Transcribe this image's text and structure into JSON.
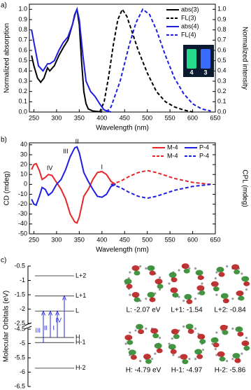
{
  "chart_data": [
    {
      "type": "line",
      "panel_label": "a)",
      "x_label": "Wavelength (nm)",
      "y_label": "Normalized absorption",
      "y2_label": "Normalized intensity",
      "xlim": [
        240,
        650
      ],
      "xticks": [
        250,
        300,
        350,
        400,
        450,
        500,
        550,
        600,
        650
      ],
      "ylim": [
        0,
        1.05
      ],
      "yticks": [
        {
          "value": 0,
          "label": "0.0"
        },
        0.1,
        0.2,
        0.3,
        0.4,
        0.5,
        0.6,
        0.7,
        0.8,
        0.9,
        {
          "value": 1,
          "label": "1.0"
        }
      ],
      "y2lim": [
        0,
        1.05
      ],
      "y2ticks": [
        {
          "value": 0,
          "label": "0.0"
        },
        0.1,
        0.2,
        0.3,
        0.4,
        0.5,
        0.6,
        0.7,
        0.8,
        0.9,
        {
          "value": 1,
          "label": "1.0"
        }
      ],
      "legend": "upper right",
      "inset_labels": [
        "4",
        "3"
      ],
      "series": [
        {
          "name": "abs(3)",
          "color": "#000000",
          "line_style": "solid",
          "x": [
            245,
            250,
            258,
            265,
            272,
            280,
            285,
            295,
            305,
            315,
            325,
            335,
            340,
            345,
            350,
            355,
            360,
            365,
            370,
            380,
            400
          ],
          "values": [
            0.55,
            0.45,
            0.33,
            0.29,
            0.33,
            0.43,
            0.4,
            0.45,
            0.55,
            0.63,
            0.7,
            0.85,
            0.95,
            1.0,
            0.85,
            0.5,
            0.2,
            0.08,
            0.03,
            0.01,
            0
          ]
        },
        {
          "name": "FL(3)",
          "color": "#000000",
          "line_style": "dashed",
          "axis": "y2",
          "x": [
            395,
            405,
            415,
            425,
            435,
            445,
            455,
            465,
            480,
            500,
            520,
            540,
            560,
            580,
            600
          ],
          "values": [
            0,
            0.1,
            0.35,
            0.65,
            0.9,
            1.0,
            0.93,
            0.8,
            0.6,
            0.38,
            0.2,
            0.1,
            0.05,
            0.02,
            0
          ]
        },
        {
          "name": "abs(4)",
          "color": "#1f1fe0",
          "line_style": "solid",
          "x": [
            245,
            250,
            260,
            270,
            280,
            285,
            295,
            305,
            315,
            325,
            335,
            342,
            345,
            350,
            358,
            365,
            375,
            385,
            395,
            405,
            420
          ],
          "values": [
            0.8,
            0.68,
            0.45,
            0.4,
            0.47,
            0.47,
            0.5,
            0.6,
            0.68,
            0.73,
            0.85,
            0.97,
            1.0,
            0.9,
            0.55,
            0.3,
            0.2,
            0.15,
            0.08,
            0.02,
            0
          ]
        },
        {
          "name": "FL(4)",
          "color": "#1f1fe0",
          "line_style": "dashed",
          "axis": "y2",
          "x": [
            410,
            420,
            440,
            460,
            475,
            490,
            505,
            520,
            540,
            560,
            580,
            600,
            620,
            640
          ],
          "values": [
            0,
            0.05,
            0.3,
            0.65,
            0.87,
            1.0,
            0.95,
            0.8,
            0.55,
            0.33,
            0.18,
            0.08,
            0.03,
            0.01
          ]
        }
      ]
    },
    {
      "type": "line",
      "panel_label": "b)",
      "x_label": "Wavelength (nm)",
      "y_label": "CD (mdeg)",
      "y2_label": "CPL (mdeg)",
      "xlim": [
        240,
        650
      ],
      "xticks": [
        250,
        300,
        350,
        400,
        450,
        500,
        550,
        600,
        650
      ],
      "ylim": [
        -50,
        42
      ],
      "yticks": [
        -50,
        -40,
        -30,
        -20,
        -10,
        0,
        10,
        20,
        30,
        40
      ],
      "y2lim": [
        -50,
        42
      ],
      "legend": "upper right",
      "annotations": [
        "I",
        "II",
        "III",
        "IV"
      ],
      "series": [
        {
          "name": "M-4",
          "color": "#e8262a",
          "line_style": "solid",
          "x": [
            245,
            250,
            255,
            262,
            268,
            275,
            282,
            290,
            300,
            310,
            320,
            330,
            340,
            345,
            350,
            360,
            370,
            380,
            390,
            400,
            410,
            420,
            430
          ],
          "values": [
            15,
            20,
            21,
            14,
            5,
            7,
            10,
            9,
            2,
            -5,
            -15,
            -30,
            -38,
            -39,
            -33,
            -12,
            -5,
            5,
            12,
            13,
            10,
            3,
            0
          ]
        },
        {
          "name": "P-4",
          "color": "#1f1fe0",
          "line_style": "solid",
          "x": [
            245,
            250,
            255,
            262,
            268,
            275,
            282,
            290,
            300,
            310,
            320,
            330,
            340,
            345,
            350,
            360,
            370,
            380,
            390,
            400,
            410,
            420,
            430
          ],
          "values": [
            -15,
            -20,
            -21,
            -12,
            -3,
            -5,
            -11,
            -8,
            0,
            5,
            15,
            28,
            37,
            38,
            32,
            12,
            3,
            -5,
            -12,
            -13,
            -10,
            -2,
            0
          ]
        },
        {
          "name": "M-4",
          "color": "#e8262a",
          "line_style": "dashed",
          "axis": "y2",
          "x": [
            420,
            440,
            460,
            480,
            500,
            520,
            540,
            560,
            580,
            600,
            620,
            640
          ],
          "values": [
            0,
            3,
            8,
            12,
            14,
            12,
            9,
            6,
            4,
            2,
            1,
            0
          ]
        },
        {
          "name": "P-4",
          "color": "#1f1fe0",
          "line_style": "dashed",
          "axis": "y2",
          "x": [
            420,
            440,
            460,
            480,
            500,
            520,
            540,
            560,
            580,
            600,
            620,
            640
          ],
          "values": [
            0,
            -3,
            -8,
            -12,
            -14,
            -12,
            -9,
            -6,
            -4,
            -2,
            -1,
            0
          ]
        }
      ]
    }
  ],
  "orbital_diagram": {
    "panel_label": "c)",
    "y_label": "Molecular Orbitals (eV)",
    "ylim": [
      -6.5,
      -0.5
    ],
    "axis_break": [
      -4.4,
      -2.6
    ],
    "yticks": [
      -0.5,
      -1,
      -1.5,
      -2,
      -2.5,
      -4.5,
      -5,
      -5.5,
      -6,
      -6.5
    ],
    "transitions": [
      "III",
      "II",
      "I",
      "IV"
    ],
    "orbitals": [
      {
        "level_label": "L",
        "energy": -2.07,
        "caption": "L: -2.07 eV"
      },
      {
        "level_label": "L+1",
        "energy": -1.54,
        "caption": "L+1: -1.54"
      },
      {
        "level_label": "L+2",
        "energy": -0.84,
        "caption": "L+2: -0.84"
      },
      {
        "level_label": "H",
        "energy": -4.79,
        "caption": "H: -4.79 eV"
      },
      {
        "level_label": "H-1",
        "energy": -4.97,
        "caption": "H-1: -4.97"
      },
      {
        "level_label": "H-2",
        "energy": -5.86,
        "caption": "H-2: -5.86"
      }
    ]
  }
}
